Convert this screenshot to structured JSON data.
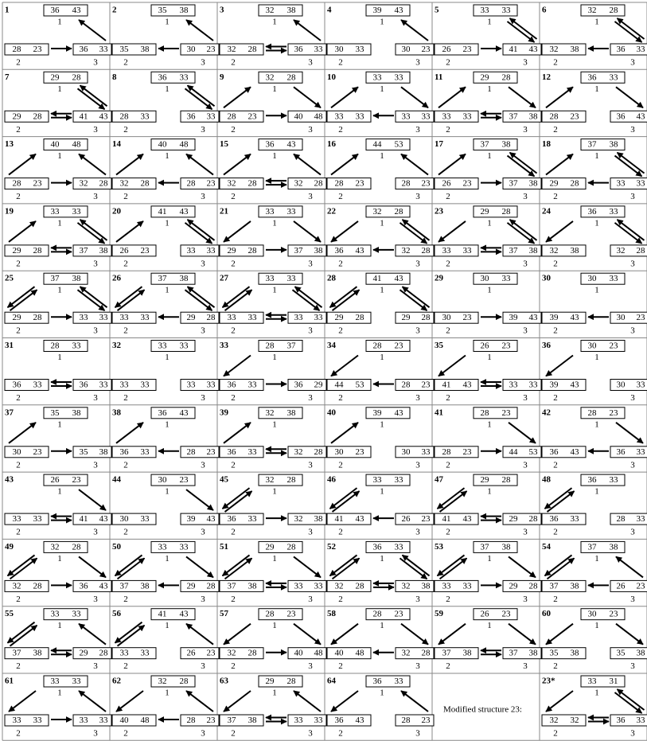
{
  "node_labels": [
    "1",
    "2",
    "3"
  ],
  "note": "Modified structure 23:",
  "structures": [
    {
      "id": "1",
      "top": [
        36,
        43
      ],
      "left": [
        28,
        23
      ],
      "right": [
        36,
        33
      ]
    },
    {
      "id": "2",
      "top": [
        35,
        38
      ],
      "left": [
        35,
        38
      ],
      "right": [
        30,
        23
      ]
    },
    {
      "id": "3",
      "top": [
        32,
        38
      ],
      "left": [
        32,
        28
      ],
      "right": [
        36,
        33
      ]
    },
    {
      "id": "4",
      "top": [
        39,
        43
      ],
      "left": [
        30,
        33
      ],
      "right": [
        30,
        23
      ]
    },
    {
      "id": "5",
      "top": [
        33,
        33
      ],
      "left": [
        26,
        23
      ],
      "right": [
        41,
        43
      ]
    },
    {
      "id": "6",
      "top": [
        32,
        28
      ],
      "left": [
        32,
        38
      ],
      "right": [
        36,
        33
      ]
    },
    {
      "id": "7",
      "top": [
        29,
        28
      ],
      "left": [
        29,
        28
      ],
      "right": [
        41,
        43
      ]
    },
    {
      "id": "8",
      "top": [
        36,
        33
      ],
      "left": [
        28,
        33
      ],
      "right": [
        36,
        33
      ]
    },
    {
      "id": "9",
      "top": [
        32,
        28
      ],
      "left": [
        28,
        23
      ],
      "right": [
        40,
        48
      ]
    },
    {
      "id": "10",
      "top": [
        33,
        33
      ],
      "left": [
        33,
        33
      ],
      "right": [
        33,
        33
      ]
    },
    {
      "id": "11",
      "top": [
        29,
        28
      ],
      "left": [
        33,
        33
      ],
      "right": [
        37,
        38
      ]
    },
    {
      "id": "12",
      "top": [
        36,
        33
      ],
      "left": [
        28,
        23
      ],
      "right": [
        36,
        43
      ]
    },
    {
      "id": "13",
      "top": [
        40,
        48
      ],
      "left": [
        28,
        23
      ],
      "right": [
        32,
        28
      ]
    },
    {
      "id": "14",
      "top": [
        40,
        48
      ],
      "left": [
        32,
        28
      ],
      "right": [
        28,
        23
      ]
    },
    {
      "id": "15",
      "top": [
        36,
        43
      ],
      "left": [
        32,
        28
      ],
      "right": [
        32,
        28
      ]
    },
    {
      "id": "16",
      "top": [
        44,
        53
      ],
      "left": [
        28,
        23
      ],
      "right": [
        28,
        23
      ]
    },
    {
      "id": "17",
      "top": [
        37,
        38
      ],
      "left": [
        26,
        23
      ],
      "right": [
        37,
        38
      ]
    },
    {
      "id": "18",
      "top": [
        37,
        38
      ],
      "left": [
        29,
        28
      ],
      "right": [
        33,
        33
      ]
    },
    {
      "id": "19",
      "top": [
        33,
        33
      ],
      "left": [
        29,
        28
      ],
      "right": [
        37,
        38
      ]
    },
    {
      "id": "20",
      "top": [
        41,
        43
      ],
      "left": [
        26,
        23
      ],
      "right": [
        33,
        33
      ]
    },
    {
      "id": "21",
      "top": [
        33,
        33
      ],
      "left": [
        29,
        28
      ],
      "right": [
        37,
        38
      ]
    },
    {
      "id": "22",
      "top": [
        32,
        28
      ],
      "left": [
        36,
        43
      ],
      "right": [
        32,
        28
      ]
    },
    {
      "id": "23",
      "top": [
        29,
        28
      ],
      "left": [
        33,
        33
      ],
      "right": [
        37,
        38
      ]
    },
    {
      "id": "24",
      "top": [
        36,
        33
      ],
      "left": [
        32,
        38
      ],
      "right": [
        32,
        28
      ]
    },
    {
      "id": "25",
      "top": [
        37,
        38
      ],
      "left": [
        29,
        28
      ],
      "right": [
        33,
        33
      ]
    },
    {
      "id": "26",
      "top": [
        37,
        38
      ],
      "left": [
        33,
        33
      ],
      "right": [
        29,
        28
      ]
    },
    {
      "id": "27",
      "top": [
        33,
        33
      ],
      "left": [
        33,
        33
      ],
      "right": [
        33,
        33
      ]
    },
    {
      "id": "28",
      "top": [
        41,
        43
      ],
      "left": [
        29,
        28
      ],
      "right": [
        29,
        28
      ]
    },
    {
      "id": "29",
      "top": [
        30,
        33
      ],
      "left": [
        30,
        23
      ],
      "right": [
        39,
        43
      ]
    },
    {
      "id": "30",
      "top": [
        30,
        33
      ],
      "left": [
        39,
        43
      ],
      "right": [
        30,
        23
      ]
    },
    {
      "id": "31",
      "top": [
        28,
        33
      ],
      "left": [
        36,
        33
      ],
      "right": [
        36,
        33
      ]
    },
    {
      "id": "32",
      "top": [
        33,
        33
      ],
      "left": [
        33,
        33
      ],
      "right": [
        33,
        33
      ]
    },
    {
      "id": "33",
      "top": [
        28,
        37
      ],
      "left": [
        36,
        33
      ],
      "right": [
        36,
        29
      ]
    },
    {
      "id": "34",
      "top": [
        28,
        23
      ],
      "left": [
        44,
        53
      ],
      "right": [
        28,
        23
      ]
    },
    {
      "id": "35",
      "top": [
        26,
        23
      ],
      "left": [
        41,
        43
      ],
      "right": [
        33,
        33
      ]
    },
    {
      "id": "36",
      "top": [
        30,
        23
      ],
      "left": [
        39,
        43
      ],
      "right": [
        30,
        33
      ]
    },
    {
      "id": "37",
      "top": [
        35,
        38
      ],
      "left": [
        30,
        23
      ],
      "right": [
        35,
        38
      ]
    },
    {
      "id": "38",
      "top": [
        36,
        43
      ],
      "left": [
        36,
        33
      ],
      "right": [
        28,
        23
      ]
    },
    {
      "id": "39",
      "top": [
        32,
        38
      ],
      "left": [
        36,
        33
      ],
      "right": [
        32,
        28
      ]
    },
    {
      "id": "40",
      "top": [
        39,
        43
      ],
      "left": [
        30,
        23
      ],
      "right": [
        30,
        33
      ]
    },
    {
      "id": "41",
      "top": [
        28,
        23
      ],
      "left": [
        28,
        23
      ],
      "right": [
        44,
        53
      ]
    },
    {
      "id": "42",
      "top": [
        28,
        23
      ],
      "left": [
        36,
        43
      ],
      "right": [
        36,
        33
      ]
    },
    {
      "id": "43",
      "top": [
        26,
        23
      ],
      "left": [
        33,
        33
      ],
      "right": [
        41,
        43
      ]
    },
    {
      "id": "44",
      "top": [
        30,
        23
      ],
      "left": [
        30,
        33
      ],
      "right": [
        39,
        43
      ]
    },
    {
      "id": "45",
      "top": [
        32,
        28
      ],
      "left": [
        36,
        33
      ],
      "right": [
        32,
        38
      ]
    },
    {
      "id": "46",
      "top": [
        33,
        33
      ],
      "left": [
        41,
        43
      ],
      "right": [
        26,
        23
      ]
    },
    {
      "id": "47",
      "top": [
        29,
        28
      ],
      "left": [
        41,
        43
      ],
      "right": [
        29,
        28
      ]
    },
    {
      "id": "48",
      "top": [
        36,
        33
      ],
      "left": [
        36,
        33
      ],
      "right": [
        28,
        33
      ]
    },
    {
      "id": "49",
      "top": [
        32,
        28
      ],
      "left": [
        32,
        28
      ],
      "right": [
        36,
        43
      ]
    },
    {
      "id": "50",
      "top": [
        33,
        33
      ],
      "left": [
        37,
        38
      ],
      "right": [
        29,
        28
      ]
    },
    {
      "id": "51",
      "top": [
        29,
        28
      ],
      "left": [
        37,
        38
      ],
      "right": [
        33,
        33
      ]
    },
    {
      "id": "52",
      "top": [
        36,
        33
      ],
      "left": [
        32,
        28
      ],
      "right": [
        32,
        38
      ]
    },
    {
      "id": "53",
      "top": [
        37,
        38
      ],
      "left": [
        33,
        33
      ],
      "right": [
        29,
        28
      ]
    },
    {
      "id": "54",
      "top": [
        37,
        38
      ],
      "left": [
        37,
        38
      ],
      "right": [
        26,
        23
      ]
    },
    {
      "id": "55",
      "top": [
        33,
        33
      ],
      "left": [
        37,
        38
      ],
      "right": [
        29,
        28
      ]
    },
    {
      "id": "56",
      "top": [
        41,
        43
      ],
      "left": [
        33,
        33
      ],
      "right": [
        26,
        23
      ]
    },
    {
      "id": "57",
      "top": [
        28,
        23
      ],
      "left": [
        32,
        28
      ],
      "right": [
        40,
        48
      ]
    },
    {
      "id": "58",
      "top": [
        28,
        23
      ],
      "left": [
        40,
        48
      ],
      "right": [
        32,
        28
      ]
    },
    {
      "id": "59",
      "top": [
        26,
        23
      ],
      "left": [
        37,
        38
      ],
      "right": [
        37,
        38
      ]
    },
    {
      "id": "60",
      "top": [
        30,
        23
      ],
      "left": [
        35,
        38
      ],
      "right": [
        35,
        38
      ]
    },
    {
      "id": "61",
      "top": [
        33,
        33
      ],
      "left": [
        33,
        33
      ],
      "right": [
        33,
        33
      ]
    },
    {
      "id": "62",
      "top": [
        32,
        28
      ],
      "left": [
        40,
        48
      ],
      "right": [
        28,
        23
      ]
    },
    {
      "id": "63",
      "top": [
        29,
        28
      ],
      "left": [
        37,
        38
      ],
      "right": [
        33,
        33
      ]
    },
    {
      "id": "64",
      "top": [
        36,
        33
      ],
      "left": [
        36,
        43
      ],
      "right": [
        28,
        23
      ]
    },
    {
      "id": "23*",
      "top": [
        33,
        31
      ],
      "left": [
        32,
        32
      ],
      "right": [
        36,
        33
      ]
    }
  ]
}
